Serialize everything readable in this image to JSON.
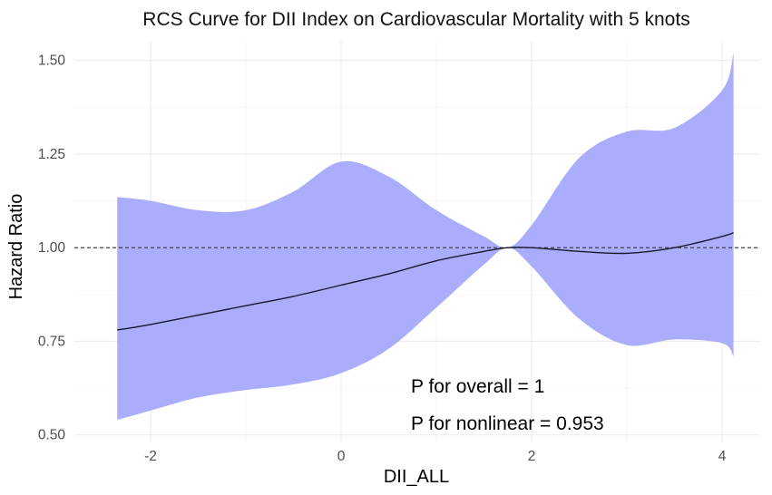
{
  "chart_data": {
    "type": "area",
    "title": "RCS Curve for DII Index on Cardiovascular Mortality with 5 knots",
    "xlabel": "DII_ALL",
    "ylabel": "Hazard Ratio",
    "xlim": [
      -2.8,
      4.4
    ],
    "ylim": [
      0.48,
      1.55
    ],
    "x_ticks": [
      -2,
      0,
      2,
      4
    ],
    "x_tick_labels": [
      "-2",
      "0",
      "2",
      "4"
    ],
    "y_ticks": [
      0.5,
      0.75,
      1.0,
      1.25,
      1.5
    ],
    "y_tick_labels": [
      "0.50",
      "0.75",
      "1.00",
      "1.25",
      "1.50"
    ],
    "reference_line": {
      "y": 1.0,
      "style": "dashed"
    },
    "series": [
      {
        "name": "Hazard Ratio",
        "x": [
          -2.35,
          -2.0,
          -1.5,
          -1.0,
          -0.5,
          0.0,
          0.5,
          1.0,
          1.5,
          1.75,
          2.0,
          2.5,
          3.0,
          3.5,
          4.0,
          4.12
        ],
        "hr": [
          0.78,
          0.795,
          0.82,
          0.845,
          0.87,
          0.9,
          0.93,
          0.965,
          0.99,
          1.0,
          1.0,
          0.99,
          0.985,
          1.0,
          1.03,
          1.04
        ],
        "lower": [
          0.54,
          0.565,
          0.6,
          0.62,
          0.635,
          0.665,
          0.73,
          0.84,
          0.955,
          1.0,
          0.95,
          0.81,
          0.74,
          0.755,
          0.745,
          0.71
        ],
        "upper": [
          1.135,
          1.125,
          1.1,
          1.1,
          1.15,
          1.23,
          1.19,
          1.1,
          1.03,
          1.0,
          1.06,
          1.24,
          1.31,
          1.32,
          1.42,
          1.52
        ]
      }
    ],
    "annotations": [
      "P for overall = 1",
      "P for nonlinear = 0.953"
    ],
    "colors": {
      "band": "#a9adfb",
      "line": "#1a1a2e",
      "reference": "#333333"
    }
  }
}
